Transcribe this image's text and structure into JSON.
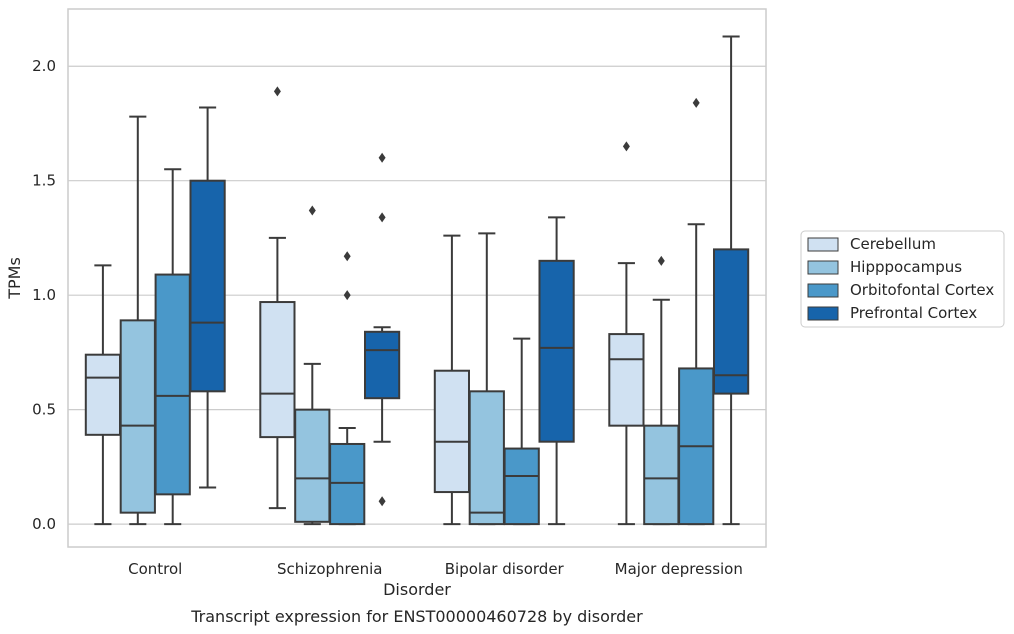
{
  "chart_data": {
    "type": "boxplot",
    "title": "",
    "caption": "Transcript expression for ENST00000460728 by disorder",
    "xlabel": "Disorder",
    "ylabel": "TPMs",
    "ylim": [
      -0.1,
      2.25
    ],
    "yticks": [
      0.0,
      0.5,
      1.0,
      1.5,
      2.0
    ],
    "ytick_labels": [
      "0.0",
      "0.5",
      "1.0",
      "1.5",
      "2.0"
    ],
    "grid": "horizontal",
    "legend_position": "right",
    "categories": [
      "Control",
      "Schizophrenia",
      "Bipolar disorder",
      "Major depression"
    ],
    "series": [
      {
        "name": "Cerebellum",
        "color": "#d0e1f2",
        "boxes": [
          {
            "whislo": 0.0,
            "q1": 0.39,
            "med": 0.64,
            "q3": 0.74,
            "whishi": 1.13,
            "fliers": []
          },
          {
            "whislo": 0.07,
            "q1": 0.38,
            "med": 0.57,
            "q3": 0.97,
            "whishi": 1.25,
            "fliers": [
              1.89
            ]
          },
          {
            "whislo": 0.0,
            "q1": 0.14,
            "med": 0.36,
            "q3": 0.67,
            "whishi": 1.26,
            "fliers": []
          },
          {
            "whislo": 0.0,
            "q1": 0.43,
            "med": 0.72,
            "q3": 0.83,
            "whishi": 1.14,
            "fliers": [
              1.65
            ]
          }
        ]
      },
      {
        "name": "Hipppocampus",
        "color": "#94c4df",
        "boxes": [
          {
            "whislo": 0.0,
            "q1": 0.05,
            "med": 0.43,
            "q3": 0.89,
            "whishi": 1.78,
            "fliers": []
          },
          {
            "whislo": 0.0,
            "q1": 0.01,
            "med": 0.2,
            "q3": 0.5,
            "whishi": 0.7,
            "fliers": [
              1.37
            ]
          },
          {
            "whislo": 0.0,
            "q1": 0.0,
            "med": 0.05,
            "q3": 0.58,
            "whishi": 1.27,
            "fliers": []
          },
          {
            "whislo": 0.0,
            "q1": 0.0,
            "med": 0.2,
            "q3": 0.43,
            "whishi": 0.98,
            "fliers": [
              1.15
            ]
          }
        ]
      },
      {
        "name": "Orbitofontal Cortex",
        "color": "#4a98c9",
        "boxes": [
          {
            "whislo": 0.0,
            "q1": 0.13,
            "med": 0.56,
            "q3": 1.09,
            "whishi": 1.55,
            "fliers": []
          },
          {
            "whislo": 0.0,
            "q1": 0.0,
            "med": 0.18,
            "q3": 0.35,
            "whishi": 0.42,
            "fliers": [
              1.0,
              1.17
            ]
          },
          {
            "whislo": 0.0,
            "q1": 0.0,
            "med": 0.21,
            "q3": 0.33,
            "whishi": 0.81,
            "fliers": []
          },
          {
            "whislo": 0.0,
            "q1": 0.0,
            "med": 0.34,
            "q3": 0.68,
            "whishi": 1.31,
            "fliers": [
              1.84
            ]
          }
        ]
      },
      {
        "name": "Prefrontal Cortex",
        "color": "#1764ab",
        "boxes": [
          {
            "whislo": 0.16,
            "q1": 0.58,
            "med": 0.88,
            "q3": 1.5,
            "whishi": 1.82,
            "fliers": []
          },
          {
            "whislo": 0.36,
            "q1": 0.55,
            "med": 0.76,
            "q3": 0.84,
            "whishi": 0.86,
            "fliers": [
              0.1,
              1.34,
              1.6
            ]
          },
          {
            "whislo": 0.0,
            "q1": 0.36,
            "med": 0.77,
            "q3": 1.15,
            "whishi": 1.34,
            "fliers": []
          },
          {
            "whislo": 0.0,
            "q1": 0.57,
            "med": 0.65,
            "q3": 1.2,
            "whishi": 2.13,
            "fliers": []
          }
        ]
      }
    ]
  }
}
